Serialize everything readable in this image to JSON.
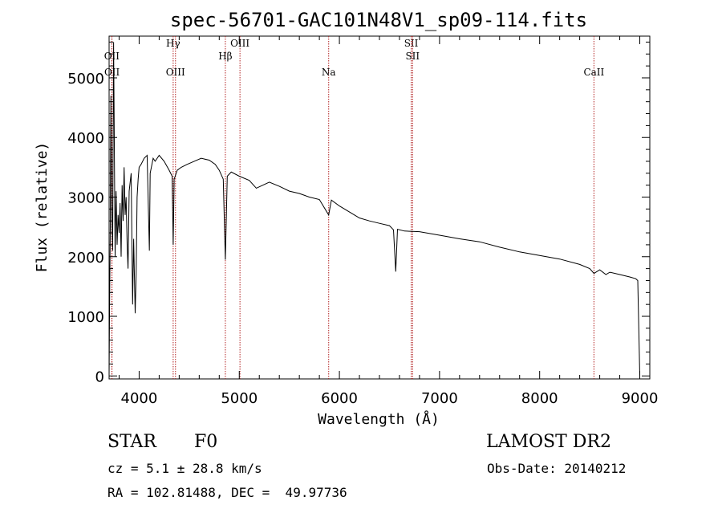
{
  "chart_data": {
    "type": "line",
    "title": "spec-56701-GAC101N48V1_sp09-114.fits",
    "xlabel": "Wavelength (Å)",
    "ylabel": "Flux (relative)",
    "xlim": [
      3700,
      9100
    ],
    "ylim": [
      -50,
      5700
    ],
    "xticks": [
      4000,
      5000,
      6000,
      7000,
      8000,
      9000
    ],
    "yticks": [
      0,
      1000,
      2000,
      3000,
      4000,
      5000
    ],
    "grid": false,
    "line_color": "#000000",
    "marker_color": "#b22222",
    "spectral_lines": [
      {
        "label": "OII",
        "wavelength": 3727,
        "row": 0
      },
      {
        "label": "OII",
        "wavelength": 3729,
        "row": 1
      },
      {
        "label": "Hγ",
        "wavelength": 4340,
        "row": 2
      },
      {
        "label": "OIII",
        "wavelength": 4363,
        "row": 1
      },
      {
        "label": "Hβ",
        "wavelength": 4861,
        "row": 0
      },
      {
        "label": "OIII",
        "wavelength": 5007,
        "row": 2
      },
      {
        "label": "Na",
        "wavelength": 5893,
        "row": 1
      },
      {
        "label": "SII",
        "wavelength": 6717,
        "row": 2
      },
      {
        "label": "SII",
        "wavelength": 6731,
        "row": 0
      },
      {
        "label": "CaII",
        "wavelength": 8542,
        "row": 1
      }
    ],
    "series": [
      {
        "values": [
          [
            3700,
            0
          ],
          [
            3705,
            1200
          ],
          [
            3712,
            2500
          ],
          [
            3718,
            4700
          ],
          [
            3725,
            2900
          ],
          [
            3735,
            2100
          ],
          [
            3745,
            5600
          ],
          [
            3760,
            2000
          ],
          [
            3770,
            3100
          ],
          [
            3780,
            2200
          ],
          [
            3790,
            2700
          ],
          [
            3800,
            2400
          ],
          [
            3810,
            2900
          ],
          [
            3820,
            2000
          ],
          [
            3830,
            3200
          ],
          [
            3840,
            2600
          ],
          [
            3850,
            3500
          ],
          [
            3860,
            2700
          ],
          [
            3870,
            3000
          ],
          [
            3880,
            2200
          ],
          [
            3889,
            1800
          ],
          [
            3900,
            3100
          ],
          [
            3920,
            3400
          ],
          [
            3935,
            1200
          ],
          [
            3945,
            2300
          ],
          [
            3960,
            1050
          ],
          [
            3970,
            1700
          ],
          [
            3980,
            3000
          ],
          [
            3990,
            3300
          ],
          [
            4000,
            3500
          ],
          [
            4020,
            3550
          ],
          [
            4050,
            3650
          ],
          [
            4080,
            3700
          ],
          [
            4102,
            2100
          ],
          [
            4110,
            3400
          ],
          [
            4140,
            3650
          ],
          [
            4160,
            3600
          ],
          [
            4200,
            3700
          ],
          [
            4250,
            3600
          ],
          [
            4300,
            3450
          ],
          [
            4330,
            3350
          ],
          [
            4340,
            2200
          ],
          [
            4350,
            3300
          ],
          [
            4380,
            3450
          ],
          [
            4420,
            3500
          ],
          [
            4480,
            3550
          ],
          [
            4550,
            3600
          ],
          [
            4620,
            3650
          ],
          [
            4700,
            3620
          ],
          [
            4760,
            3550
          ],
          [
            4800,
            3450
          ],
          [
            4840,
            3300
          ],
          [
            4861,
            1950
          ],
          [
            4880,
            3350
          ],
          [
            4920,
            3420
          ],
          [
            5000,
            3350
          ],
          [
            5100,
            3280
          ],
          [
            5170,
            3150
          ],
          [
            5300,
            3250
          ],
          [
            5400,
            3180
          ],
          [
            5500,
            3100
          ],
          [
            5600,
            3060
          ],
          [
            5700,
            3000
          ],
          [
            5800,
            2960
          ],
          [
            5893,
            2700
          ],
          [
            5920,
            2950
          ],
          [
            6000,
            2850
          ],
          [
            6100,
            2750
          ],
          [
            6200,
            2650
          ],
          [
            6300,
            2600
          ],
          [
            6400,
            2560
          ],
          [
            6500,
            2520
          ],
          [
            6540,
            2450
          ],
          [
            6563,
            1750
          ],
          [
            6580,
            2460
          ],
          [
            6650,
            2430
          ],
          [
            6800,
            2420
          ],
          [
            7000,
            2360
          ],
          [
            7200,
            2300
          ],
          [
            7400,
            2250
          ],
          [
            7600,
            2160
          ],
          [
            7800,
            2080
          ],
          [
            8000,
            2020
          ],
          [
            8200,
            1960
          ],
          [
            8400,
            1870
          ],
          [
            8500,
            1800
          ],
          [
            8542,
            1720
          ],
          [
            8600,
            1780
          ],
          [
            8662,
            1700
          ],
          [
            8700,
            1740
          ],
          [
            8800,
            1700
          ],
          [
            8900,
            1660
          ],
          [
            8960,
            1630
          ],
          [
            8980,
            1600
          ],
          [
            8995,
            400
          ],
          [
            9000,
            0
          ]
        ]
      }
    ]
  },
  "info": {
    "object_class": "STAR",
    "subclass": "F0",
    "survey": "LAMOST DR2",
    "cz_line": "cz = 5.1 ± 28.8 km/s",
    "obs_date": "Obs-Date: 20140212",
    "radec_line": "RA = 102.81488, DEC =  49.97736"
  }
}
